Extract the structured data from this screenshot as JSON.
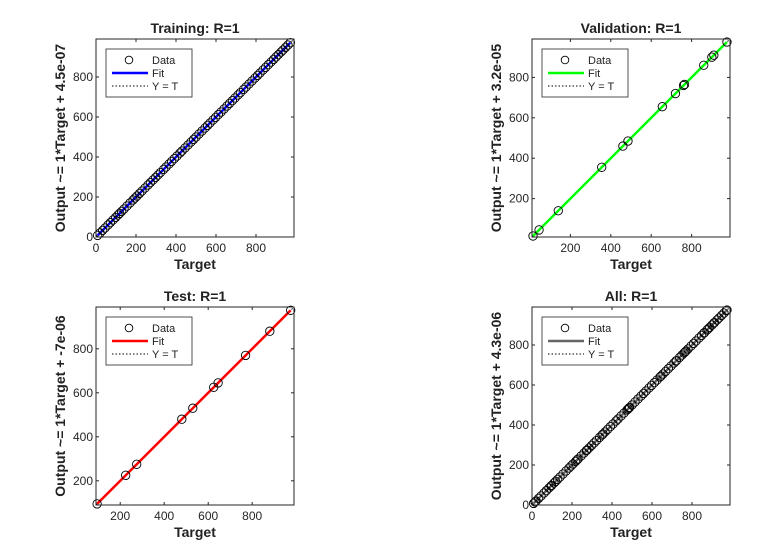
{
  "chart_data": [
    {
      "type": "scatter",
      "title": "Training: R=1",
      "xlabel": "Target",
      "ylabel": "Output ~= 1*Target + 4.5e-07",
      "xlim": [
        0,
        990
      ],
      "ylim": [
        0,
        990
      ],
      "xticks": [
        0,
        200,
        400,
        600,
        800
      ],
      "yticks": [
        0,
        200,
        400,
        600,
        800
      ],
      "fit_color": "#0000ff",
      "legend": {
        "position": "top-left",
        "entries": [
          "Data",
          "Fit",
          "Y = T"
        ]
      },
      "x": [
        8,
        20,
        33,
        45,
        60,
        72,
        85,
        98,
        110,
        118,
        128,
        140,
        155,
        170,
        185,
        195,
        205,
        218,
        230,
        245,
        260,
        272,
        285,
        298,
        310,
        322,
        338,
        350,
        365,
        378,
        392,
        405,
        420,
        430,
        445,
        460,
        475,
        488,
        500,
        515,
        530,
        545,
        558,
        570,
        585,
        598,
        612,
        625,
        640,
        655,
        668,
        682,
        695,
        710,
        722,
        738,
        750,
        765,
        780,
        795,
        808,
        820,
        835,
        848,
        862,
        875,
        888,
        900,
        912,
        925,
        935,
        948,
        960,
        972
      ],
      "y": [
        8,
        20,
        33,
        45,
        60,
        72,
        85,
        98,
        110,
        118,
        128,
        140,
        155,
        170,
        185,
        195,
        205,
        218,
        230,
        245,
        260,
        272,
        285,
        298,
        310,
        322,
        338,
        350,
        365,
        378,
        392,
        405,
        420,
        430,
        445,
        460,
        475,
        488,
        500,
        515,
        530,
        545,
        558,
        570,
        585,
        598,
        612,
        625,
        640,
        655,
        668,
        682,
        695,
        710,
        722,
        738,
        750,
        765,
        780,
        795,
        808,
        820,
        835,
        848,
        862,
        875,
        888,
        900,
        912,
        925,
        935,
        948,
        960,
        972
      ]
    },
    {
      "type": "scatter",
      "title": "Validation: R=1",
      "xlabel": "Target",
      "ylabel": "Output ~= 1*Target + 3.2e-05",
      "xlim": [
        10,
        990
      ],
      "ylim": [
        10,
        990
      ],
      "xticks": [
        200,
        400,
        600,
        800
      ],
      "yticks": [
        200,
        400,
        600,
        800
      ],
      "fit_color": "#00ff00",
      "legend": {
        "position": "top-left",
        "entries": [
          "Data",
          "Fit",
          "Y = T"
        ]
      },
      "x": [
        15,
        45,
        140,
        355,
        460,
        485,
        655,
        720,
        760,
        765,
        860,
        900,
        910,
        975
      ],
      "y": [
        15,
        45,
        140,
        355,
        460,
        485,
        655,
        720,
        760,
        765,
        860,
        900,
        910,
        975
      ]
    },
    {
      "type": "scatter",
      "title": "Test: R=1",
      "xlabel": "Target",
      "ylabel": "Output ~= 1*Target + -7e-06",
      "xlim": [
        90,
        990
      ],
      "ylim": [
        90,
        990
      ],
      "xticks": [
        200,
        400,
        600,
        800
      ],
      "yticks": [
        200,
        400,
        600,
        800
      ],
      "fit_color": "#ff0000",
      "legend": {
        "position": "top-left",
        "entries": [
          "Data",
          "Fit",
          "Y = T"
        ]
      },
      "x": [
        95,
        225,
        275,
        480,
        530,
        625,
        645,
        770,
        880,
        975
      ],
      "y": [
        95,
        225,
        275,
        480,
        530,
        625,
        645,
        770,
        880,
        975
      ]
    },
    {
      "type": "scatter",
      "title": "All: R=1",
      "xlabel": "Target",
      "ylabel": "Output ~= 1*Target + 4.3e-06",
      "xlim": [
        0,
        990
      ],
      "ylim": [
        0,
        990
      ],
      "xticks": [
        0,
        200,
        400,
        600,
        800
      ],
      "yticks": [
        0,
        200,
        400,
        600,
        800
      ],
      "fit_color": "#666666",
      "legend": {
        "position": "top-left",
        "entries": [
          "Data",
          "Fit",
          "Y = T"
        ]
      },
      "x": [
        8,
        15,
        20,
        33,
        45,
        60,
        72,
        85,
        95,
        98,
        110,
        118,
        128,
        140,
        155,
        170,
        185,
        195,
        205,
        218,
        225,
        230,
        245,
        260,
        272,
        275,
        285,
        298,
        310,
        322,
        338,
        350,
        355,
        365,
        378,
        392,
        405,
        420,
        430,
        445,
        460,
        475,
        480,
        485,
        488,
        500,
        515,
        530,
        545,
        558,
        570,
        585,
        598,
        612,
        625,
        640,
        645,
        655,
        668,
        682,
        695,
        710,
        720,
        722,
        738,
        750,
        760,
        765,
        770,
        780,
        795,
        808,
        820,
        835,
        848,
        860,
        862,
        875,
        880,
        888,
        900,
        910,
        912,
        925,
        935,
        948,
        960,
        972,
        975
      ],
      "y": [
        8,
        15,
        20,
        33,
        45,
        60,
        72,
        85,
        95,
        98,
        110,
        118,
        128,
        140,
        155,
        170,
        185,
        195,
        205,
        218,
        225,
        230,
        245,
        260,
        272,
        275,
        285,
        298,
        310,
        322,
        338,
        350,
        355,
        365,
        378,
        392,
        405,
        420,
        430,
        445,
        460,
        475,
        480,
        485,
        488,
        500,
        515,
        530,
        545,
        558,
        570,
        585,
        598,
        612,
        625,
        640,
        645,
        655,
        668,
        682,
        695,
        710,
        720,
        722,
        738,
        750,
        760,
        765,
        770,
        780,
        795,
        808,
        820,
        835,
        848,
        860,
        862,
        875,
        880,
        888,
        900,
        910,
        912,
        925,
        935,
        948,
        960,
        972,
        975
      ]
    }
  ]
}
